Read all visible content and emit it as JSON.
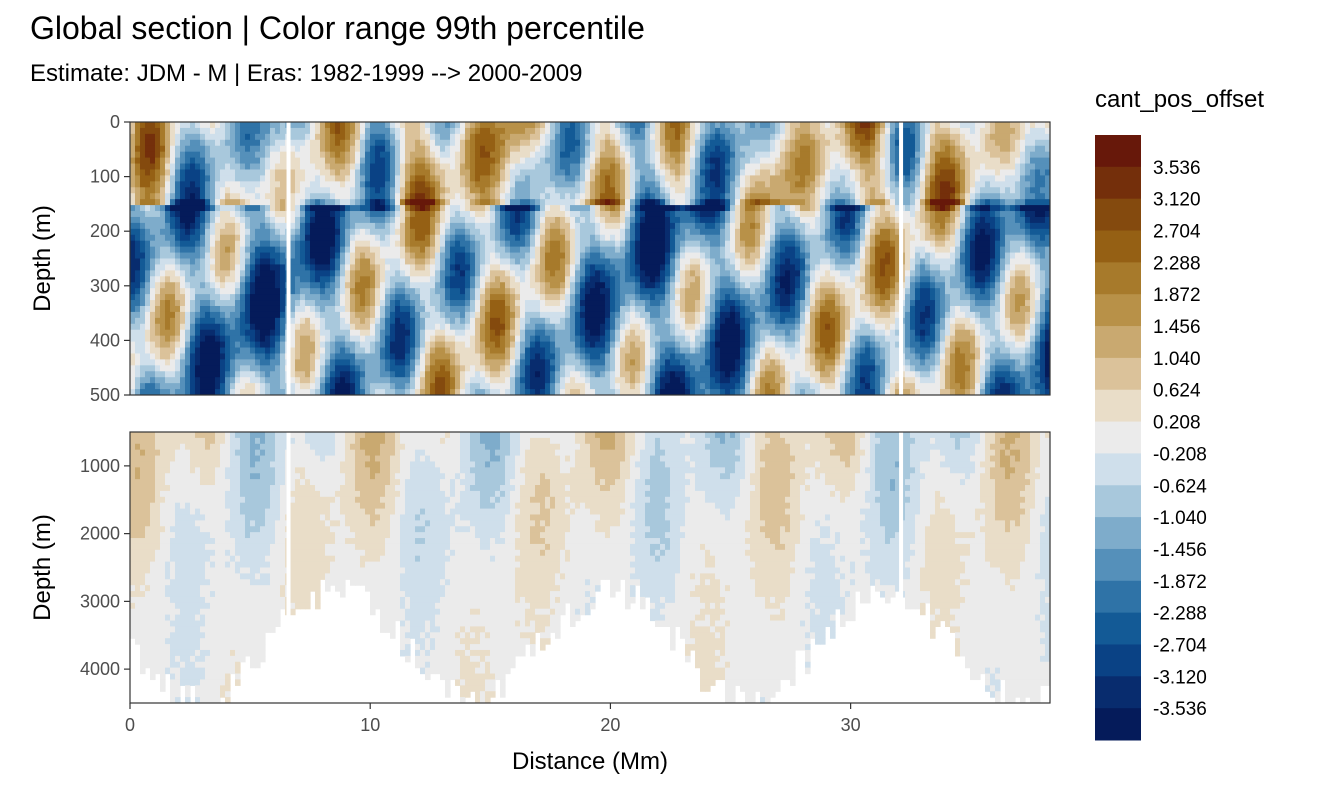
{
  "title": "Global section | Color range 99th percentile",
  "subtitle": "Estimate: JDM - M | Eras: 1982-1999 --> 2000-2009",
  "chart_data": {
    "type": "heatmap",
    "xlabel": "Distance (Mm)",
    "x_ticks": [
      0,
      10,
      20,
      30
    ],
    "xlim": [
      0,
      38.3
    ],
    "panels": [
      {
        "name": "upper",
        "ylabel": "Depth (m)",
        "ylim": [
          0,
          500
        ],
        "y_ticks": [
          0,
          100,
          200,
          300,
          400,
          500
        ],
        "reversed": true
      },
      {
        "name": "lower",
        "ylabel": "Depth (m)",
        "ylim": [
          500,
          4500
        ],
        "y_ticks": [
          1000,
          2000,
          3000,
          4000
        ],
        "reversed": true
      }
    ],
    "gaps_x": [
      6.6,
      32.1
    ],
    "legend": {
      "title": "cant_pos_offset",
      "labels": [
        "3.536",
        "3.120",
        "2.704",
        "2.288",
        "1.872",
        "1.456",
        "1.040",
        "0.624",
        "0.208",
        "-0.208",
        "-0.624",
        "-1.040",
        "-1.456",
        "-1.872",
        "-2.288",
        "-2.704",
        "-3.120",
        "-3.536"
      ],
      "colors": [
        "#67180a",
        "#742f0b",
        "#844a0e",
        "#956014",
        "#a77a2b",
        "#b89148",
        "#c9a970",
        "#dbc29a",
        "#e9ddc8",
        "#ebebeb",
        "#cfdfeb",
        "#a8c8dc",
        "#7eaccb",
        "#5590ba",
        "#2f73a7",
        "#135a96",
        "#0a4285",
        "#082c6e",
        "#051b5a"
      ]
    }
  }
}
